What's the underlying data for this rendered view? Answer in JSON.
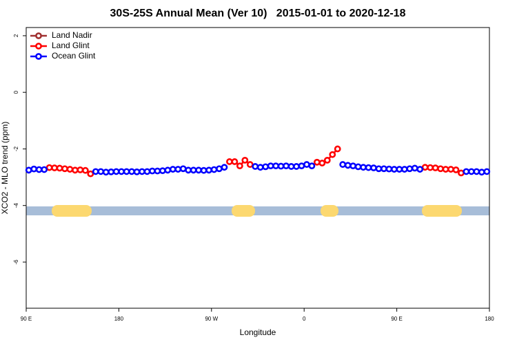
{
  "chart_data": {
    "type": "line",
    "title": "30S-25S Annual Mean (Ver 10)   2015-01-01 to 2020-12-18",
    "xlabel": "Longitude",
    "ylabel": "XCO2 - MLO trend (ppm)",
    "xlim": [
      90,
      540
    ],
    "xticks": [
      {
        "value": 90,
        "label": "90 E"
      },
      180,
      {
        "value": 270,
        "label": "90 W"
      },
      {
        "value": 360,
        "label": "0"
      },
      {
        "value": 450,
        "label": "90 E"
      },
      {
        "value": 540,
        "label": "180"
      }
    ],
    "ylim": [
      -7.63,
      2.29
    ],
    "yticks": [
      2,
      0,
      -2,
      -4,
      -6
    ],
    "legend": "top-left",
    "x": [
      92.5,
      97.5,
      102.5,
      107.5,
      112.5,
      117.5,
      122.5,
      127.5,
      132.5,
      137.5,
      142.5,
      147.5,
      152.5,
      157.5,
      162.5,
      167.5,
      172.5,
      177.5,
      182.5,
      187.5,
      192.5,
      197.5,
      202.5,
      207.5,
      212.5,
      217.5,
      222.5,
      227.5,
      232.5,
      237.5,
      242.5,
      247.5,
      252.5,
      257.5,
      262.5,
      267.5,
      272.5,
      277.5,
      282.5,
      287.5,
      292.5,
      297.5,
      302.5,
      307.5,
      312.5,
      317.5,
      322.5,
      327.5,
      332.5,
      337.5,
      342.5,
      347.5,
      352.5,
      357.5,
      362.5,
      367.5,
      372.5,
      377.5,
      382.5,
      387.5,
      392.5,
      397.5,
      402.5,
      407.5,
      412.5,
      417.5,
      422.5,
      427.5,
      432.5,
      437.5,
      442.5,
      447.5,
      452.5,
      457.5,
      462.5,
      467.5,
      472.5,
      477.5,
      482.5,
      487.5,
      492.5,
      497.5,
      502.5,
      507.5,
      512.5,
      517.5,
      522.5,
      527.5,
      532.5,
      537.5
    ],
    "series": [
      {
        "name": "Land Nadir",
        "color": "#a03030",
        "values": [
          null,
          null,
          null,
          null,
          null,
          null,
          null,
          null,
          null,
          null,
          null,
          null,
          null,
          null,
          null,
          null,
          null,
          null,
          null,
          null,
          null,
          null,
          null,
          null,
          null,
          null,
          null,
          null,
          null,
          null,
          null,
          null,
          null,
          null,
          null,
          null,
          null,
          null,
          null,
          null,
          null,
          null,
          null,
          null,
          null,
          null,
          null,
          null,
          null,
          null,
          null,
          null,
          null,
          null,
          null,
          null,
          null,
          null,
          null,
          null,
          null,
          null,
          null,
          null,
          null,
          null,
          null,
          null,
          null,
          null,
          null,
          null,
          null,
          null,
          null,
          null,
          null,
          null,
          null,
          null,
          null,
          null,
          null,
          null,
          null,
          null,
          null,
          null,
          null,
          null
        ]
      },
      {
        "name": "Land Glint",
        "color": "#ff0000",
        "values": [
          null,
          null,
          null,
          null,
          -2.66,
          -2.67,
          -2.68,
          -2.7,
          -2.72,
          -2.75,
          -2.74,
          -2.76,
          -2.88,
          null,
          null,
          null,
          null,
          null,
          null,
          null,
          null,
          null,
          null,
          null,
          null,
          null,
          null,
          null,
          null,
          null,
          null,
          null,
          null,
          null,
          null,
          null,
          null,
          null,
          null,
          -2.45,
          -2.45,
          -2.6,
          -2.4,
          -2.55,
          null,
          null,
          null,
          null,
          null,
          null,
          null,
          null,
          null,
          null,
          null,
          null,
          -2.47,
          -2.5,
          -2.4,
          -2.2,
          -2.0,
          null,
          null,
          null,
          null,
          null,
          null,
          null,
          null,
          null,
          null,
          null,
          null,
          null,
          null,
          null,
          null,
          -2.65,
          -2.66,
          -2.67,
          -2.7,
          -2.72,
          -2.72,
          -2.74,
          -2.85,
          null,
          null,
          null,
          null,
          null
        ]
      },
      {
        "name": "Ocean Glint",
        "color": "#0000ff",
        "values": [
          -2.75,
          -2.71,
          -2.73,
          -2.73,
          null,
          null,
          null,
          null,
          null,
          null,
          null,
          null,
          null,
          -2.8,
          -2.8,
          -2.82,
          -2.81,
          -2.8,
          -2.8,
          -2.8,
          -2.8,
          -2.81,
          -2.8,
          -2.8,
          -2.78,
          -2.78,
          -2.77,
          -2.75,
          -2.72,
          -2.72,
          -2.7,
          -2.75,
          -2.75,
          -2.75,
          -2.76,
          -2.75,
          -2.73,
          -2.7,
          -2.65,
          null,
          null,
          null,
          null,
          null,
          -2.62,
          -2.65,
          -2.63,
          -2.6,
          -2.6,
          -2.61,
          -2.6,
          -2.62,
          -2.62,
          -2.6,
          -2.55,
          -2.6,
          null,
          null,
          null,
          null,
          null,
          -2.55,
          -2.58,
          -2.6,
          -2.63,
          -2.65,
          -2.66,
          -2.67,
          -2.7,
          -2.7,
          -2.71,
          -2.72,
          -2.72,
          -2.72,
          -2.7,
          -2.68,
          -2.72,
          null,
          null,
          null,
          null,
          null,
          null,
          null,
          null,
          -2.8,
          -2.8,
          -2.8,
          -2.82,
          -2.8
        ]
      }
    ]
  }
}
